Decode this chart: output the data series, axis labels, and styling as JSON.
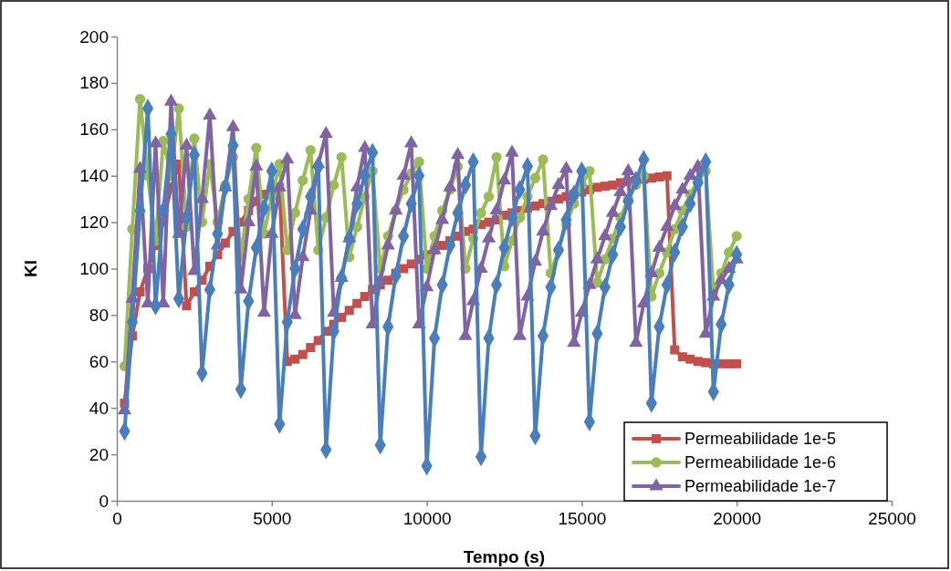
{
  "chart_data": {
    "type": "line",
    "xlabel": "Tempo (s)",
    "ylabel": "Kl",
    "x": [
      250,
      500,
      750,
      1000,
      1250,
      1500,
      1750,
      2000,
      2250,
      2500,
      2750,
      3000,
      3250,
      3500,
      3750,
      4000,
      4250,
      4500,
      4750,
      5000,
      5250,
      5500,
      5750,
      6000,
      6250,
      6500,
      6750,
      7000,
      7250,
      7500,
      7750,
      8000,
      8250,
      8500,
      8750,
      9000,
      9250,
      9500,
      9750,
      10000,
      10250,
      10500,
      10750,
      11000,
      11250,
      11500,
      11750,
      12000,
      12250,
      12500,
      12750,
      13000,
      13250,
      13500,
      13750,
      14000,
      14250,
      14500,
      14750,
      15000,
      15250,
      15500,
      15750,
      16000,
      16250,
      16500,
      16750,
      17000,
      17250,
      17500,
      17750,
      18000,
      18250,
      18500,
      18750,
      19000,
      19250,
      19500,
      19750,
      20000
    ],
    "series": [
      {
        "name": "Permeabilidade 1e-5",
        "color": "#c0504d",
        "marker": "square",
        "values": [
          42,
          71,
          90,
          100,
          110,
          120,
          135,
          145,
          84,
          90,
          95,
          101,
          106,
          111,
          116,
          120,
          125,
          129,
          132,
          134,
          135,
          60,
          61,
          63,
          66,
          69,
          73,
          76,
          79,
          82,
          85,
          88,
          91,
          93,
          95,
          98,
          100,
          102,
          104,
          106,
          108,
          110,
          112,
          114,
          116,
          117,
          119,
          120,
          121,
          123,
          124,
          125,
          126,
          127,
          128,
          129,
          130,
          131,
          132,
          133,
          134,
          135,
          135.5,
          136,
          137,
          137.5,
          138,
          138.5,
          139,
          139.5,
          140,
          65,
          62,
          61,
          60,
          59.5,
          59,
          59,
          59,
          59
        ]
      },
      {
        "name": "Permeabilidade 1e-6",
        "color": "#9bbb59",
        "marker": "circle",
        "values": [
          58,
          117,
          173,
          140,
          112,
          155,
          140,
          169,
          118,
          156,
          120,
          145,
          120,
          136,
          148,
          105,
          130,
          152,
          115,
          131,
          145,
          108,
          124,
          138,
          151,
          108,
          122,
          136,
          148,
          105,
          118,
          131,
          142,
          100,
          114,
          125,
          134,
          141,
          146,
          100,
          114,
          125,
          134,
          144,
          100,
          113,
          124,
          131,
          148,
          101,
          112,
          122,
          131,
          139,
          147,
          98,
          108,
          119,
          128,
          136,
          142,
          94,
          104,
          113,
          122,
          130,
          136,
          140,
          88,
          98,
          107,
          117,
          125,
          132,
          138,
          142,
          90,
          98,
          107,
          114
        ]
      },
      {
        "name": "Permeabilidade 1e-7",
        "color": "#8064a2",
        "marker": "triangle",
        "values": [
          39,
          87,
          143,
          85,
          154,
          85,
          172,
          115,
          153,
          99,
          130,
          166,
          110,
          135,
          161,
          91,
          120,
          144,
          81,
          115,
          135,
          147,
          80,
          105,
          125,
          145,
          158,
          81,
          96,
          113,
          135,
          152,
          76,
          95,
          110,
          125,
          140,
          154,
          76,
          92,
          108,
          121,
          135,
          149,
          71,
          86,
          100,
          113,
          125,
          138,
          150,
          71,
          88,
          103,
          116,
          127,
          136,
          143,
          68,
          81,
          93,
          104,
          114,
          124,
          133,
          142,
          68,
          85,
          98,
          109,
          118,
          127,
          134,
          140,
          144,
          72,
          88,
          95,
          100,
          104
        ]
      },
      {
        "color": "#4a7ebb",
        "marker": "diamond",
        "values": [
          30,
          77,
          125,
          169,
          84,
          125,
          158,
          87,
          122,
          149,
          55,
          91,
          115,
          135,
          153,
          48,
          86,
          109,
          126,
          142,
          33,
          77,
          100,
          117,
          131,
          144,
          22,
          73,
          96,
          113,
          128,
          140,
          150,
          24,
          75,
          97,
          114,
          128,
          140,
          15,
          70,
          93,
          110,
          124,
          136,
          146,
          19,
          70,
          93,
          109,
          122,
          134,
          144,
          28,
          71,
          92,
          108,
          121,
          132,
          142,
          34,
          72,
          92,
          106,
          118,
          129,
          138,
          147,
          42,
          75,
          93,
          107,
          118,
          128,
          137,
          146,
          47,
          76,
          93,
          106
        ]
      }
    ],
    "xlim": [
      0,
      25000
    ],
    "xticks": [
      0,
      5000,
      10000,
      15000,
      20000,
      25000
    ],
    "ylim": [
      0,
      200
    ],
    "yticks": [
      0,
      20,
      40,
      60,
      80,
      100,
      120,
      140,
      160,
      180,
      200
    ],
    "grid": false,
    "legend": "bottom right"
  }
}
